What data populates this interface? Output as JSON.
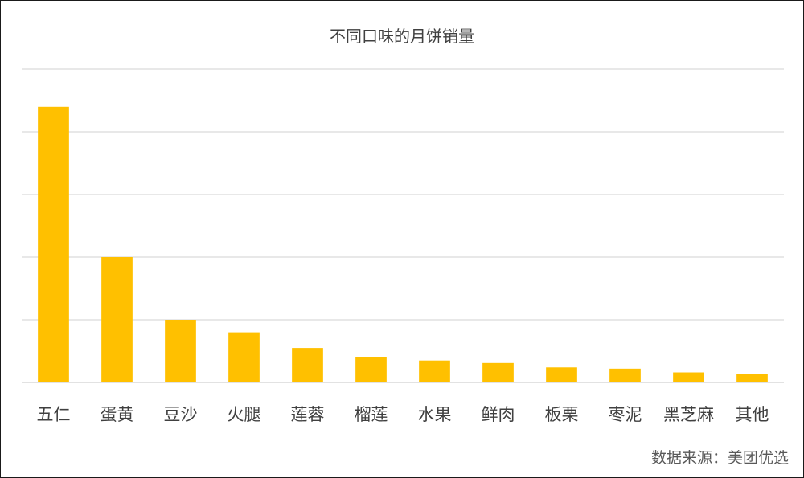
{
  "chart_data": {
    "type": "bar",
    "title": "不同口味的月饼销量",
    "categories": [
      "五仁",
      "蛋黄",
      "豆沙",
      "火腿",
      "莲蓉",
      "榴莲",
      "水果",
      "鲜肉",
      "板栗",
      "枣泥",
      "黑芝麻",
      "其他"
    ],
    "series": [
      {
        "values": [
          44,
          20,
          10,
          8,
          5.5,
          4,
          3.5,
          3.1,
          2.4,
          2.2,
          1.6,
          1.4
        ]
      }
    ],
    "ylim": [
      0,
      50
    ],
    "y_gridlines": [
      0,
      10,
      20,
      30,
      40,
      50
    ],
    "y_tick_labels_shown": false,
    "grid": true,
    "legend": "none",
    "bar_color": "#ffc000",
    "grid_color": "#d9d9d9",
    "source": "数据来源：美团优选"
  }
}
